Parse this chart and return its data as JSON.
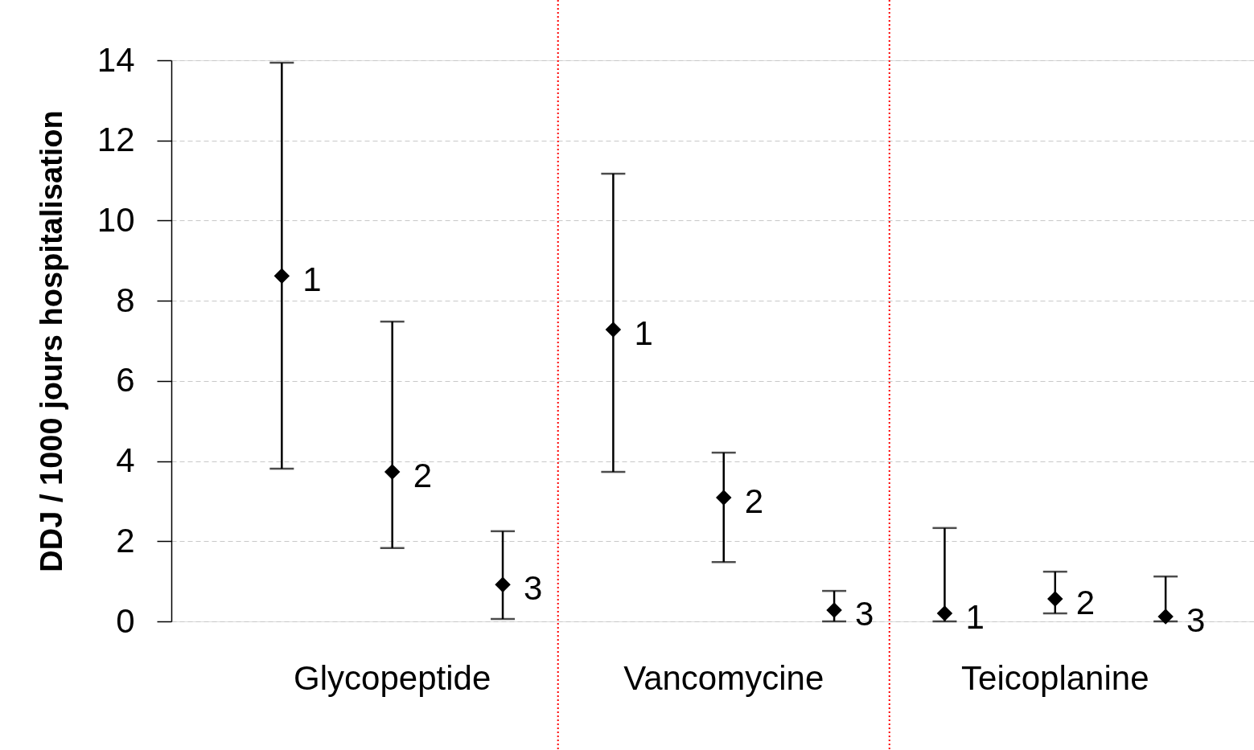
{
  "chart_data": {
    "type": "scatter",
    "ylabel": "DDJ / 1000 jours hospitalisation",
    "categories": [
      "Glycopeptide",
      "Vancomycine",
      "Teicoplanine"
    ],
    "series": [
      {
        "name": "1",
        "color": "#000000",
        "values": [
          8.62,
          7.28,
          0.2
        ],
        "errors": [
          [
            3.81,
            13.94
          ],
          [
            3.73,
            11.17
          ],
          [
            0,
            2.33
          ]
        ]
      },
      {
        "name": "2",
        "color": "#000000",
        "values": [
          3.73,
          3.09,
          0.56
        ],
        "errors": [
          [
            1.83,
            7.48
          ],
          [
            1.48,
            4.21
          ],
          [
            0.2,
            1.24
          ]
        ]
      },
      {
        "name": "3",
        "color": "#000000",
        "values": [
          0.92,
          0.28,
          0.12
        ],
        "errors": [
          [
            0.06,
            2.25
          ],
          [
            0,
            0.76
          ],
          [
            0,
            1.12
          ]
        ]
      }
    ],
    "ylim": [
      0,
      14
    ],
    "yticks": [
      0,
      2,
      4,
      6,
      8,
      10,
      12,
      14
    ],
    "grid": "y",
    "marker": "diamond",
    "tick_labels": "y"
  }
}
